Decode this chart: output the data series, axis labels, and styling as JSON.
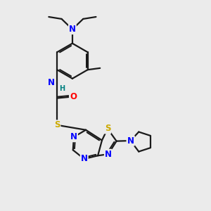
{
  "background_color": "#ebebeb",
  "bond_color": "#1a1a1a",
  "N_color": "#0000ff",
  "O_color": "#ff0000",
  "S_color": "#ccaa00",
  "H_color": "#008080",
  "line_width": 1.6,
  "font_size_atom": 8.5,
  "font_size_small": 7.0,
  "figsize": [
    3.0,
    3.0
  ],
  "dpi": 100,
  "xlim": [
    0,
    10
  ],
  "ylim": [
    0,
    10
  ]
}
